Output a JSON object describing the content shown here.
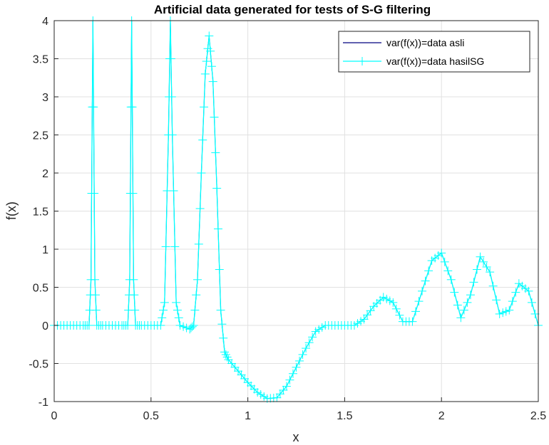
{
  "chart_data": {
    "type": "line",
    "title": "Artificial data generated for tests of S-G filtering",
    "xlabel": "x",
    "ylabel": "f(x)",
    "xlim": [
      0,
      2.5
    ],
    "ylim": [
      -1,
      4
    ],
    "xticks": [
      "0",
      "0.5",
      "1",
      "1.5",
      "2",
      "2.5"
    ],
    "yticks": [
      "-1",
      "-0.5",
      "0",
      "0.5",
      "1",
      "1.5",
      "2",
      "2.5",
      "3",
      "3.5",
      "4"
    ],
    "grid": true,
    "legend_position": "top-right",
    "series": [
      {
        "name": "var(f(x))=data asli",
        "color": "#000080",
        "marker": "none",
        "x": [
          0,
          0.05,
          0.1,
          0.15,
          0.18,
          0.19,
          0.2,
          0.21,
          0.22,
          0.25,
          0.3,
          0.35,
          0.38,
          0.39,
          0.4,
          0.41,
          0.42,
          0.45,
          0.5,
          0.55,
          0.57,
          0.59,
          0.6,
          0.61,
          0.63,
          0.65,
          0.7,
          0.72,
          0.74,
          0.76,
          0.78,
          0.8,
          0.82,
          0.84,
          0.86,
          0.88,
          0.9,
          0.95,
          1.0,
          1.05,
          1.1,
          1.15,
          1.2,
          1.25,
          1.3,
          1.35,
          1.4,
          1.45,
          1.5,
          1.55,
          1.6,
          1.65,
          1.7,
          1.75,
          1.8,
          1.85,
          1.9,
          1.95,
          2.0,
          2.05,
          2.1,
          2.15,
          2.2,
          2.25,
          2.3,
          2.35,
          2.4,
          2.45,
          2.5
        ],
        "y": [
          0,
          0,
          0,
          0,
          0,
          0.6,
          4.0,
          0.6,
          0,
          0,
          0,
          0,
          0,
          0.6,
          4.0,
          0.6,
          0,
          0,
          0,
          0,
          0.3,
          2.5,
          4.0,
          2.5,
          0.3,
          0,
          -0.05,
          0,
          0.6,
          2.0,
          3.3,
          3.8,
          3.2,
          1.8,
          0.2,
          -0.35,
          -0.45,
          -0.6,
          -0.75,
          -0.88,
          -0.96,
          -0.95,
          -0.8,
          -0.55,
          -0.3,
          -0.08,
          0.0,
          0.0,
          0.0,
          0.0,
          0.08,
          0.25,
          0.37,
          0.3,
          0.05,
          0.05,
          0.45,
          0.85,
          0.95,
          0.6,
          0.1,
          0.4,
          0.9,
          0.7,
          0.15,
          0.2,
          0.55,
          0.45,
          0.0
        ]
      },
      {
        "name": "var(f(x))=data hasilSG",
        "color": "#00FFFF",
        "marker": "+",
        "x": [
          0,
          0.05,
          0.1,
          0.15,
          0.18,
          0.19,
          0.2,
          0.21,
          0.22,
          0.25,
          0.3,
          0.35,
          0.38,
          0.39,
          0.4,
          0.41,
          0.42,
          0.45,
          0.5,
          0.55,
          0.57,
          0.59,
          0.6,
          0.61,
          0.63,
          0.65,
          0.7,
          0.72,
          0.74,
          0.76,
          0.78,
          0.8,
          0.82,
          0.84,
          0.86,
          0.88,
          0.9,
          0.95,
          1.0,
          1.05,
          1.1,
          1.15,
          1.2,
          1.25,
          1.3,
          1.35,
          1.4,
          1.45,
          1.5,
          1.55,
          1.6,
          1.65,
          1.7,
          1.75,
          1.8,
          1.85,
          1.9,
          1.95,
          2.0,
          2.05,
          2.1,
          2.15,
          2.2,
          2.25,
          2.3,
          2.35,
          2.4,
          2.45,
          2.5
        ],
        "y": [
          0,
          0,
          0,
          0,
          0,
          0.6,
          4.0,
          0.6,
          0,
          0,
          0,
          0,
          0,
          0.6,
          4.0,
          0.6,
          0,
          0,
          0,
          0,
          0.3,
          2.5,
          4.0,
          2.5,
          0.3,
          0,
          -0.05,
          0,
          0.6,
          2.0,
          3.3,
          3.8,
          3.2,
          1.8,
          0.2,
          -0.35,
          -0.45,
          -0.6,
          -0.75,
          -0.88,
          -0.96,
          -0.95,
          -0.8,
          -0.55,
          -0.3,
          -0.08,
          0.0,
          0.0,
          0.0,
          0.0,
          0.08,
          0.25,
          0.37,
          0.3,
          0.05,
          0.05,
          0.45,
          0.85,
          0.95,
          0.6,
          0.1,
          0.4,
          0.9,
          0.7,
          0.15,
          0.2,
          0.55,
          0.45,
          0.0
        ]
      }
    ]
  }
}
